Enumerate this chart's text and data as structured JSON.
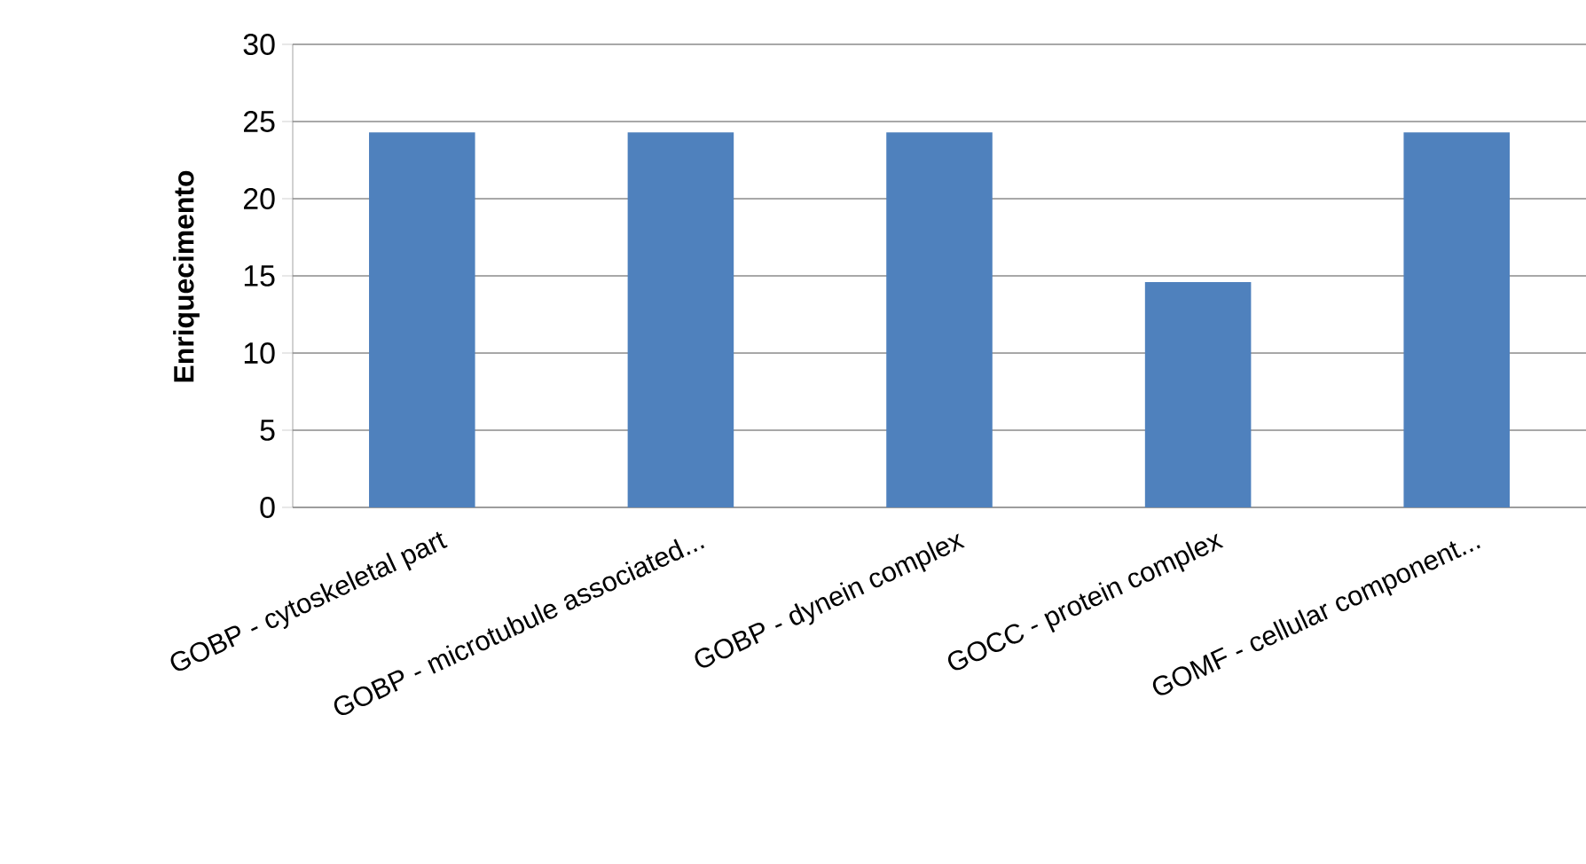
{
  "chart_data": {
    "type": "bar",
    "ylabel": "Enriquecimento",
    "categories": [
      "GOBP - cytoskeletal part",
      "GOBP - microtubule associated...",
      "GOBP - dynein complex",
      "GOCC - protein complex",
      "GOMF - cellular component..."
    ],
    "values": [
      24.3,
      24.3,
      24.3,
      14.6,
      24.3
    ],
    "color": "#4f81bd",
    "ylim": [
      0,
      30
    ],
    "yticks": [
      0,
      5,
      10,
      15,
      20,
      25,
      30
    ],
    "grid": "y"
  }
}
